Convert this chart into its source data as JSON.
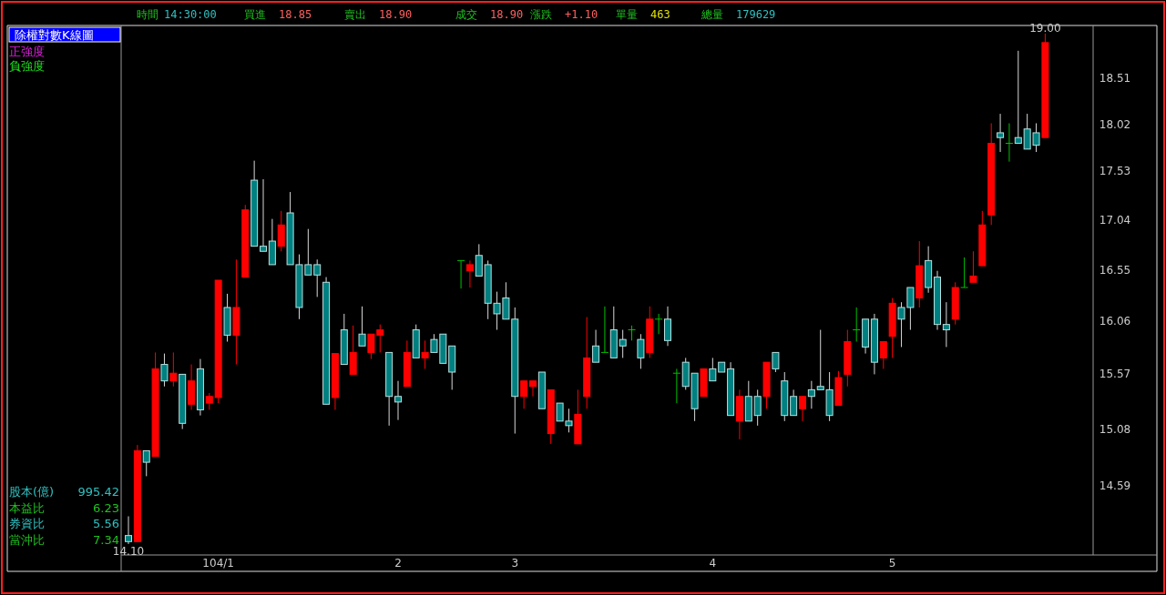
{
  "chart_data": {
    "type": "candlestick",
    "title": "除權對數K線圖",
    "log": true,
    "ylim": [
      14.01,
      19.07
    ],
    "yticks": [
      14.59,
      15.08,
      15.57,
      16.06,
      16.55,
      17.04,
      17.53,
      18.02,
      18.51
    ],
    "categories": [
      null,
      null,
      null,
      null,
      null,
      null,
      null,
      null,
      null,
      null,
      "104/1",
      null,
      null,
      null,
      null,
      null,
      null,
      null,
      null,
      null,
      null,
      null,
      null,
      null,
      null,
      null,
      null,
      null,
      null,
      null,
      "2",
      null,
      null,
      null,
      null,
      null,
      null,
      null,
      null,
      null,
      null,
      null,
      null,
      "3",
      null,
      null,
      null,
      null,
      null,
      null,
      null,
      null,
      null,
      null,
      null,
      null,
      null,
      null,
      null,
      null,
      null,
      null,
      null,
      null,
      null,
      "4",
      null,
      null,
      null,
      null,
      null,
      null,
      null,
      null,
      null,
      null,
      null,
      null,
      null,
      null,
      null,
      null,
      null,
      null,
      null,
      "5",
      null,
      null,
      null,
      null,
      null,
      null,
      null,
      null,
      null,
      null,
      null,
      null,
      null,
      null,
      null,
      null,
      null
    ],
    "ohlc": [
      [
        14.17,
        14.33,
        14.1,
        14.12
      ],
      [
        14.12,
        14.94,
        14.12,
        14.89
      ],
      [
        14.89,
        14.89,
        14.67,
        14.79
      ],
      [
        14.84,
        15.77,
        14.84,
        15.62
      ],
      [
        15.66,
        15.76,
        15.46,
        15.51
      ],
      [
        15.51,
        15.77,
        15.46,
        15.58
      ],
      [
        15.57,
        15.57,
        15.08,
        15.13
      ],
      [
        15.3,
        15.66,
        15.25,
        15.51
      ],
      [
        15.62,
        15.71,
        15.2,
        15.25
      ],
      [
        15.31,
        15.4,
        15.25,
        15.37
      ],
      [
        15.36,
        16.45,
        15.31,
        16.45
      ],
      [
        16.19,
        16.32,
        15.87,
        15.93
      ],
      [
        15.93,
        16.65,
        15.66,
        16.19
      ],
      [
        16.48,
        17.19,
        16.48,
        17.14
      ],
      [
        17.44,
        17.64,
        16.78,
        16.78
      ],
      [
        16.78,
        17.45,
        16.73,
        16.73
      ],
      [
        16.83,
        17.05,
        16.6,
        16.6
      ],
      [
        16.78,
        17.13,
        16.73,
        16.99
      ],
      [
        17.11,
        17.32,
        16.6,
        16.6
      ],
      [
        16.6,
        16.7,
        16.08,
        16.19
      ],
      [
        16.6,
        16.95,
        16.5,
        16.5
      ],
      [
        16.6,
        16.65,
        16.29,
        16.5
      ],
      [
        16.43,
        16.48,
        15.3,
        15.3
      ],
      [
        15.36,
        15.76,
        15.25,
        15.76
      ],
      [
        15.98,
        16.13,
        15.66,
        15.66
      ],
      [
        15.57,
        16.02,
        15.57,
        15.77
      ],
      [
        15.94,
        16.2,
        15.83,
        15.83
      ],
      [
        15.77,
        15.94,
        15.71,
        15.94
      ],
      [
        15.93,
        16.03,
        15.77,
        15.98
      ],
      [
        15.77,
        15.77,
        15.11,
        15.37
      ],
      [
        15.37,
        15.51,
        15.16,
        15.32
      ],
      [
        15.46,
        15.88,
        15.46,
        15.77
      ],
      [
        15.98,
        16.03,
        15.72,
        15.72
      ],
      [
        15.72,
        15.88,
        15.62,
        15.77
      ],
      [
        15.89,
        15.94,
        15.77,
        15.77
      ],
      [
        15.94,
        15.94,
        15.67,
        15.67
      ],
      [
        15.83,
        15.83,
        15.43,
        15.59
      ],
      [
        16.64,
        16.64,
        16.37,
        16.64
      ],
      [
        16.54,
        16.64,
        16.38,
        16.6
      ],
      [
        16.69,
        16.8,
        16.49,
        16.49
      ],
      [
        16.6,
        16.64,
        16.08,
        16.23
      ],
      [
        16.23,
        16.34,
        15.98,
        16.13
      ],
      [
        16.28,
        16.43,
        16.08,
        16.08
      ],
      [
        16.08,
        16.19,
        15.04,
        15.37
      ],
      [
        15.37,
        15.51,
        15.26,
        15.51
      ],
      [
        15.46,
        15.51,
        15.37,
        15.51
      ],
      [
        15.59,
        15.59,
        15.26,
        15.26
      ],
      [
        15.04,
        15.43,
        14.95,
        15.43
      ],
      [
        15.31,
        15.31,
        15.15,
        15.15
      ],
      [
        15.15,
        15.26,
        15.05,
        15.11
      ],
      [
        14.95,
        15.43,
        14.95,
        15.21
      ],
      [
        15.37,
        16.1,
        15.26,
        15.72
      ],
      [
        15.83,
        15.98,
        15.68,
        15.68
      ],
      [
        15.77,
        16.2,
        15.77,
        15.77
      ],
      [
        15.98,
        16.2,
        15.72,
        15.72
      ],
      [
        15.89,
        15.98,
        15.72,
        15.83
      ],
      [
        15.98,
        16.02,
        15.88,
        15.98
      ],
      [
        15.89,
        15.94,
        15.62,
        15.72
      ],
      [
        15.77,
        16.2,
        15.72,
        16.08
      ],
      [
        16.08,
        16.13,
        15.94,
        16.08
      ],
      [
        16.08,
        16.2,
        15.83,
        15.88
      ],
      [
        15.58,
        15.62,
        15.31,
        15.58
      ],
      [
        15.68,
        15.72,
        15.43,
        15.46
      ],
      [
        15.58,
        15.58,
        15.15,
        15.26
      ],
      [
        15.37,
        15.62,
        15.37,
        15.62
      ],
      [
        15.62,
        15.72,
        15.51,
        15.51
      ],
      [
        15.68,
        15.68,
        15.59,
        15.59
      ],
      [
        15.62,
        15.68,
        15.2,
        15.2
      ],
      [
        15.15,
        15.43,
        14.99,
        15.37
      ],
      [
        15.37,
        15.51,
        15.15,
        15.15
      ],
      [
        15.37,
        15.43,
        15.11,
        15.2
      ],
      [
        15.37,
        15.68,
        15.26,
        15.68
      ],
      [
        15.77,
        15.77,
        15.59,
        15.62
      ],
      [
        15.51,
        15.59,
        15.15,
        15.2
      ],
      [
        15.37,
        15.43,
        15.2,
        15.2
      ],
      [
        15.26,
        15.37,
        15.15,
        15.37
      ],
      [
        15.43,
        15.51,
        15.26,
        15.37
      ],
      [
        15.46,
        15.98,
        15.43,
        15.43
      ],
      [
        15.43,
        15.59,
        15.15,
        15.2
      ],
      [
        15.29,
        15.6,
        15.29,
        15.54
      ],
      [
        15.57,
        15.98,
        15.46,
        15.87
      ],
      [
        15.98,
        16.19,
        15.87,
        15.98
      ],
      [
        16.08,
        16.08,
        15.76,
        15.82
      ],
      [
        16.08,
        16.13,
        15.57,
        15.68
      ],
      [
        15.72,
        15.87,
        15.62,
        15.87
      ],
      [
        15.92,
        16.28,
        15.72,
        16.23
      ],
      [
        16.19,
        16.24,
        15.82,
        16.08
      ],
      [
        16.38,
        16.38,
        15.98,
        16.19
      ],
      [
        16.28,
        16.83,
        16.19,
        16.59
      ],
      [
        16.64,
        16.78,
        16.33,
        16.38
      ],
      [
        16.48,
        16.54,
        15.98,
        16.03
      ],
      [
        16.03,
        16.24,
        15.82,
        15.98
      ],
      [
        16.08,
        16.43,
        16.03,
        16.38
      ],
      [
        16.38,
        16.67,
        16.38,
        16.38
      ],
      [
        16.43,
        16.73,
        16.43,
        16.49
      ],
      [
        16.59,
        17.13,
        16.59,
        16.99
      ],
      [
        17.09,
        18.03,
        16.99,
        17.82
      ],
      [
        17.93,
        18.13,
        17.73,
        17.88
      ],
      [
        17.82,
        18.03,
        17.63,
        17.82
      ],
      [
        17.88,
        18.81,
        17.82,
        17.82
      ],
      [
        17.97,
        18.13,
        17.76,
        17.76
      ],
      [
        17.93,
        18.03,
        17.73,
        17.8
      ],
      [
        17.88,
        19.0,
        17.88,
        18.9
      ]
    ],
    "colors": [
      "#008080",
      "#ff0000",
      "#008080",
      "#ff0000",
      "#008080",
      "#ff0000",
      "#008080",
      "#ff0000",
      "#008080",
      "#ff0000",
      "#ff0000",
      "#008080",
      "#ff0000",
      "#ff0000",
      "#008080",
      "#008080",
      "#008080",
      "#ff0000",
      "#008080",
      "#008080",
      "#008080",
      "#008080",
      "#008080",
      "#ff0000",
      "#008080",
      "#ff0000",
      "#008080",
      "#ff0000",
      "#ff0000",
      "#008080",
      "#008080",
      "#ff0000",
      "#008080",
      "#ff0000",
      "#008080",
      "#008080",
      "#008080",
      "#00c000",
      "#ff0000",
      "#008080",
      "#008080",
      "#008080",
      "#008080",
      "#008080",
      "#ff0000",
      "#ff0000",
      "#008080",
      "#ff0000",
      "#008080",
      "#008080",
      "#ff0000",
      "#ff0000",
      "#008080",
      "#00c000",
      "#008080",
      "#008080",
      "#00c000",
      "#008080",
      "#ff0000",
      "#00c000",
      "#008080",
      "#00c000",
      "#008080",
      "#008080",
      "#ff0000",
      "#008080",
      "#008080",
      "#008080",
      "#ff0000",
      "#008080",
      "#008080",
      "#ff0000",
      "#008080",
      "#008080",
      "#008080",
      "#ff0000",
      "#008080",
      "#008080",
      "#008080",
      "#ff0000",
      "#ff0000",
      "#00c000",
      "#008080",
      "#008080",
      "#ff0000",
      "#ff0000",
      "#008080",
      "#008080",
      "#ff0000",
      "#008080",
      "#008080",
      "#008080",
      "#ff0000",
      "#00c000",
      "#ff0000",
      "#ff0000",
      "#ff0000",
      "#008080",
      "#00c000",
      "#008080",
      "#008080",
      "#008080",
      "#ff0000"
    ],
    "annotations": [
      "時間",
      "14:30:00",
      "買進",
      "18.85",
      "賣出",
      "18.90",
      "成交",
      "18.90",
      "漲跌",
      "+1.10",
      "單量",
      "463",
      "總量",
      "179629",
      "正強度",
      "負強度",
      "股本(億)",
      "995.42",
      "本益比",
      "6.23",
      "券資比",
      "5.56",
      "當沖比",
      "7.34",
      {
        "text": "19.00",
        "y": 19.0
      },
      {
        "text": "14.10",
        "y": 14.1
      }
    ]
  }
}
